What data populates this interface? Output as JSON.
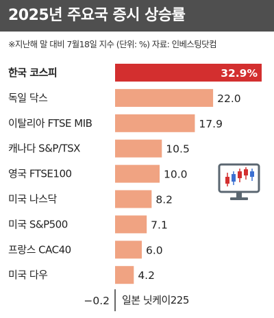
{
  "header": {
    "title": "2025년 주요국 증시 상승률",
    "subtitle": "※지난해 말 대비 7월18일 지수 (단위: %) 자료: 인베스팅닷컴"
  },
  "colors": {
    "header_bg": "#4f4f4f",
    "highlight_bar": "#d32f2f",
    "bar": "#f0a382",
    "baseline": "#333333"
  },
  "icons": [
    "monitor-candlestick-icon"
  ],
  "chart_data": {
    "type": "bar",
    "orientation": "horizontal",
    "categories": [
      "한국 코스피",
      "독일 닥스",
      "이탈리아 FTSE MIB",
      "캐나다 S&P/TSX",
      "영국 FTSE100",
      "미국 나스닥",
      "미국 S&P500",
      "프랑스 CAC40",
      "미국 다우",
      "일본 닛케이225"
    ],
    "values": [
      32.9,
      22.0,
      17.9,
      10.5,
      10.0,
      8.2,
      7.1,
      6.0,
      4.2,
      -0.2
    ],
    "value_labels": [
      "32.9%",
      "22.0",
      "17.9",
      "10.5",
      "10.0",
      "8.2",
      "7.1",
      "6.0",
      "4.2",
      "−0.2"
    ],
    "highlight_index": 0,
    "unit": "%",
    "xlim": [
      0,
      32.9
    ]
  }
}
